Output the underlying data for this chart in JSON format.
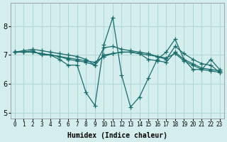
{
  "xlabel": "Humidex (Indice chaleur)",
  "ylabel": "",
  "xlim": [
    -0.5,
    23.5
  ],
  "ylim": [
    4.8,
    8.8
  ],
  "yticks": [
    5,
    6,
    7,
    8
  ],
  "xtick_labels": [
    "0",
    "1",
    "2",
    "3",
    "4",
    "5",
    "6",
    "7",
    "8",
    "9",
    "10",
    "11",
    "12",
    "13",
    "14",
    "15",
    "16",
    "17",
    "18",
    "19",
    "20",
    "21",
    "22",
    "23"
  ],
  "bg_color": "#d4eeed",
  "grid_color": "#b0d8d5",
  "line_color": "#1a6b6b",
  "lines": [
    [
      7.1,
      7.1,
      7.15,
      7.0,
      7.0,
      6.85,
      6.65,
      6.65,
      5.7,
      5.25,
      7.35,
      8.3,
      6.3,
      5.2,
      5.55,
      6.2,
      6.85,
      7.1,
      7.55,
      6.85,
      6.5,
      6.5,
      6.85,
      6.5
    ],
    [
      7.1,
      7.1,
      7.1,
      7.05,
      7.0,
      6.95,
      6.9,
      6.85,
      6.8,
      6.75,
      6.95,
      7.05,
      7.1,
      7.1,
      7.05,
      6.85,
      6.8,
      6.75,
      7.1,
      6.85,
      6.7,
      6.55,
      6.5,
      6.45
    ],
    [
      7.1,
      7.1,
      7.1,
      7.05,
      7.0,
      6.95,
      6.85,
      6.8,
      6.75,
      6.65,
      7.0,
      7.05,
      7.1,
      7.1,
      7.05,
      7.0,
      6.95,
      6.9,
      7.05,
      6.8,
      6.65,
      6.5,
      6.45,
      6.4
    ],
    [
      7.1,
      7.15,
      7.2,
      7.15,
      7.1,
      7.05,
      7.0,
      6.95,
      6.85,
      6.65,
      7.25,
      7.3,
      7.2,
      7.15,
      7.1,
      7.05,
      6.95,
      6.85,
      7.3,
      7.05,
      6.85,
      6.7,
      6.65,
      6.4
    ]
  ]
}
